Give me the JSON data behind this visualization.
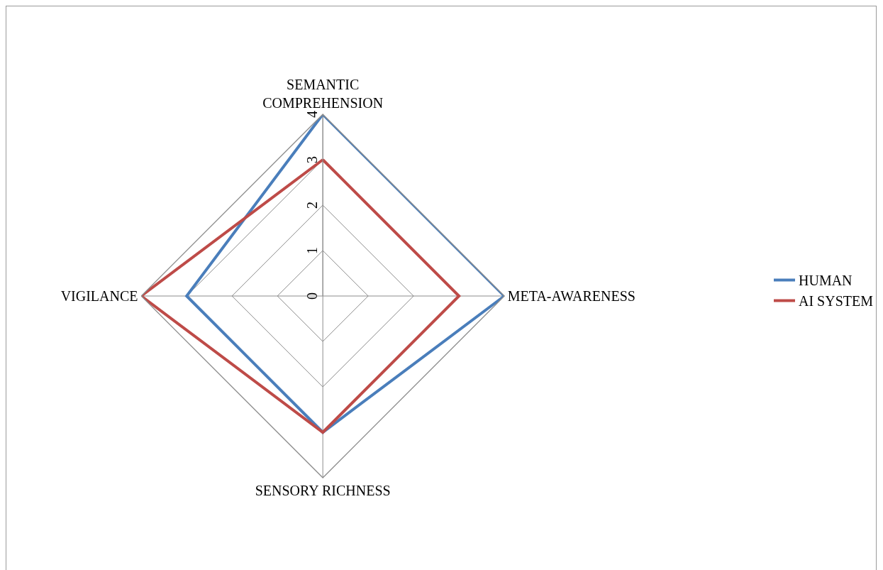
{
  "chart_data": {
    "type": "radar",
    "categories": [
      "SEMANTIC COMPREHENSION",
      "META-AWARENESS",
      "SENSORY RICHNESS",
      "VIGILANCE"
    ],
    "series": [
      {
        "name": "HUMAN",
        "color": "#4a7ebb",
        "values": [
          4,
          4,
          3,
          3
        ]
      },
      {
        "name": "AI SYSTEM",
        "color": "#be4b48",
        "values": [
          3,
          3,
          3,
          4
        ]
      }
    ],
    "ylim": [
      0,
      4
    ],
    "yticks": [
      0,
      1,
      2,
      3,
      4
    ],
    "grid": true,
    "legend": "right",
    "marker": "none",
    "line_style": "solid"
  }
}
